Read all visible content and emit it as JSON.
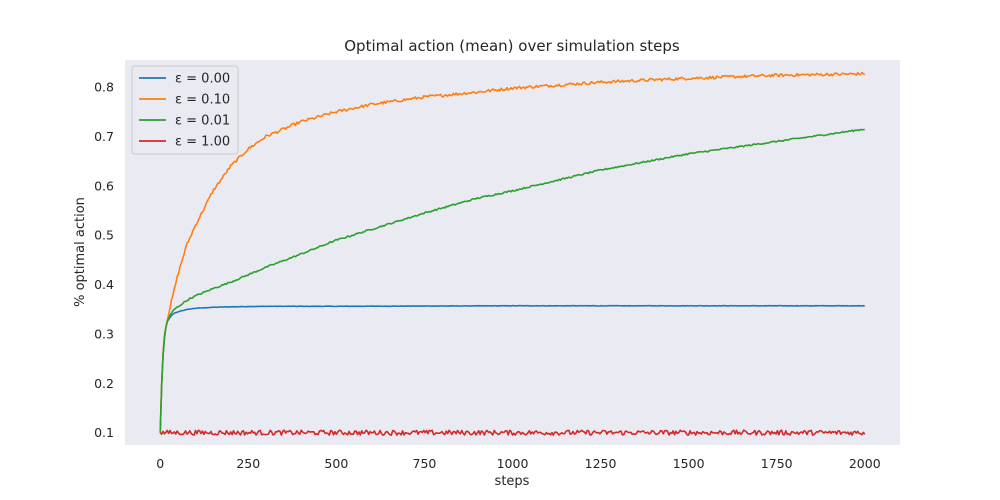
{
  "chart_data": {
    "type": "line",
    "title": "Optimal action (mean) over simulation steps",
    "xlabel": "steps",
    "ylabel": "% optimal action",
    "xlim": [
      -100,
      2100
    ],
    "ylim": [
      0.075,
      0.855
    ],
    "xticks": [
      0,
      250,
      500,
      750,
      1000,
      1250,
      1500,
      1750,
      2000
    ],
    "yticks": [
      0.1,
      0.2,
      0.3,
      0.4,
      0.5,
      0.6,
      0.7,
      0.8
    ],
    "grid": false,
    "legend_position": "top-left",
    "background": "#eaeaf2",
    "series": [
      {
        "name": "ε = 0.00",
        "color": "#1f77b4",
        "x": [
          0,
          5,
          10,
          15,
          20,
          30,
          40,
          60,
          80,
          100,
          150,
          200,
          300,
          500,
          1000,
          1500,
          2000
        ],
        "values": [
          0.1,
          0.22,
          0.28,
          0.31,
          0.325,
          0.336,
          0.342,
          0.347,
          0.35,
          0.352,
          0.354,
          0.355,
          0.356,
          0.356,
          0.357,
          0.357,
          0.357
        ]
      },
      {
        "name": "ε = 0.10",
        "color": "#ff7f0e",
        "x": [
          0,
          5,
          10,
          20,
          30,
          50,
          75,
          100,
          150,
          200,
          250,
          300,
          400,
          500,
          600,
          750,
          900,
          1000,
          1250,
          1500,
          1750,
          2000
        ],
        "values": [
          0.1,
          0.22,
          0.29,
          0.33,
          0.36,
          0.42,
          0.48,
          0.52,
          0.59,
          0.64,
          0.675,
          0.7,
          0.73,
          0.75,
          0.765,
          0.78,
          0.79,
          0.798,
          0.81,
          0.818,
          0.824,
          0.827
        ]
      },
      {
        "name": "ε = 0.01",
        "color": "#2ca02c",
        "x": [
          0,
          5,
          10,
          15,
          20,
          30,
          40,
          60,
          80,
          100,
          150,
          200,
          300,
          400,
          500,
          600,
          750,
          900,
          1000,
          1250,
          1500,
          1750,
          2000
        ],
        "values": [
          0.1,
          0.22,
          0.28,
          0.31,
          0.325,
          0.34,
          0.35,
          0.36,
          0.37,
          0.377,
          0.392,
          0.405,
          0.435,
          0.462,
          0.49,
          0.512,
          0.545,
          0.575,
          0.59,
          0.632,
          0.665,
          0.69,
          0.715
        ]
      },
      {
        "name": "ε = 1.00",
        "color": "#d62728",
        "x": [
          0,
          2000
        ],
        "values": [
          0.1,
          0.1
        ],
        "noise": 0.005
      }
    ]
  }
}
